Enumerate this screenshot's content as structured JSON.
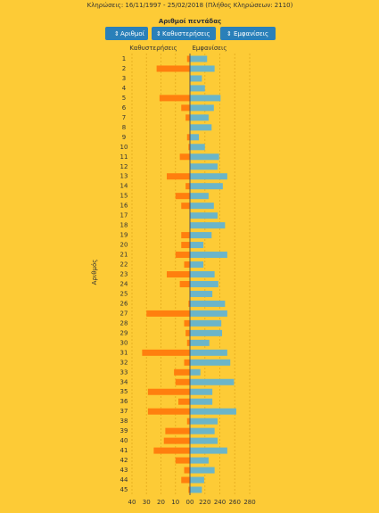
{
  "header": "Κληρώσεις:    16/11/1997 - 25/02/2018  (Πλήθος Κληρώσεων: 2110)",
  "buttons": [
    "Αριθμοί",
    "Καθυστερήσεις",
    "Εμφανίσεις"
  ],
  "chart_data": {
    "type": "bar",
    "orientation": "horizontal",
    "title": "Αριθμοί πεντάδας",
    "y_label": "Αριθμός",
    "categories": [
      "1",
      "2",
      "3",
      "4",
      "5",
      "6",
      "7",
      "8",
      "9",
      "10",
      "11",
      "12",
      "13",
      "14",
      "15",
      "16",
      "17",
      "18",
      "19",
      "20",
      "21",
      "22",
      "23",
      "24",
      "25",
      "26",
      "27",
      "28",
      "29",
      "30",
      "31",
      "32",
      "33",
      "34",
      "35",
      "36",
      "37",
      "38",
      "39",
      "40",
      "41",
      "42",
      "43",
      "44",
      "45"
    ],
    "series": [
      {
        "name": "Καθυστερήσεις",
        "color": "#ff7f0e",
        "axis": "x",
        "values": [
          2,
          23,
          0,
          0,
          21,
          6,
          3,
          0,
          2,
          1,
          7,
          0,
          16,
          3,
          10,
          6,
          0,
          0,
          6,
          6,
          10,
          4,
          16,
          7,
          0,
          1,
          30,
          4,
          3,
          2,
          33,
          4,
          11,
          10,
          29,
          8,
          29,
          2,
          17,
          18,
          25,
          10,
          4,
          6,
          1
        ]
      },
      {
        "name": "Εμφανίσεις",
        "color": "#6bb5c9",
        "axis": "x2",
        "values": [
          223,
          233,
          216,
          220,
          241,
          232,
          225,
          229,
          212,
          220,
          239,
          237,
          250,
          244,
          225,
          232,
          237,
          247,
          229,
          218,
          250,
          218,
          233,
          238,
          230,
          247,
          250,
          242,
          243,
          226,
          250,
          254,
          214,
          259,
          230,
          230,
          262,
          237,
          233,
          237,
          250,
          225,
          233,
          219,
          216
        ]
      }
    ],
    "xlim": [
      0,
      40
    ],
    "xticks": [
      {
        "value": 0,
        "label": "00"
      },
      10,
      20,
      30,
      40
    ],
    "x2lim": [
      200,
      280
    ],
    "x2ticks": [
      220,
      240,
      260,
      280
    ],
    "grid": true
  }
}
